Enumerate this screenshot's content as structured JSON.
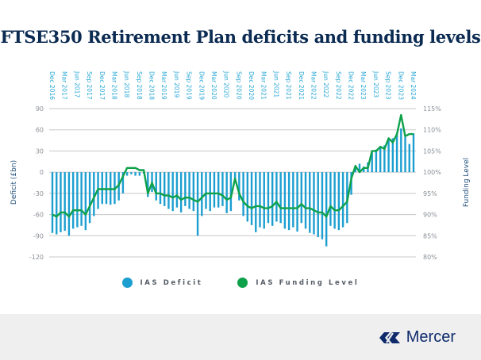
{
  "title": "FTSE350 Retirement Plan deficits and funding levels",
  "legend": [
    {
      "label": "IAS Deficit",
      "color": "#1c9fd0"
    },
    {
      "label": "IAS Funding Level",
      "color": "#0ea14a"
    }
  ],
  "logo": {
    "text": "Mercer",
    "color": "#0e2a6b"
  },
  "chart_data": {
    "type": "bar+line",
    "title": "FTSE350 Retirement Plan deficits and funding levels",
    "x_tick_labels": [
      "Dec 2016",
      "Mar 2017",
      "Jun 2017",
      "Sep 2017",
      "Dec 2017",
      "Mar 2018",
      "Jun 2018",
      "Sep 2018",
      "Dec 2018",
      "Mar 2019",
      "Jun 2019",
      "Sep 2019",
      "Dec 2019",
      "Mar 2020",
      "Jun 2020",
      "Sep 2020",
      "Dec 2020",
      "Mar 2021",
      "Jun 2021",
      "Sep 2021",
      "Dec 2021",
      "Mar 2022",
      "Jun 2022",
      "Sep 2022",
      "Dec 2022",
      "Mar 2023",
      "Jun 2023",
      "Sep 2023",
      "Dec 2023",
      "Mar 2024"
    ],
    "x_period": "monthly, Dec 2016 to Mar 2024",
    "left_axis": {
      "label": "Deficit (£bn)",
      "ticks": [
        90,
        60,
        30,
        0,
        -30,
        -60,
        -90,
        -120
      ],
      "range": [
        -120,
        90
      ]
    },
    "right_axis": {
      "label": "Funding Level",
      "ticks": [
        "115%",
        "110%",
        "105%",
        "100%",
        "95%",
        "90%",
        "85%",
        "80%"
      ],
      "range": [
        80,
        115
      ]
    },
    "grid": true,
    "legend_position": "bottom-center",
    "series": [
      {
        "name": "IAS Deficit",
        "type": "bar",
        "axis": "left",
        "color": "#1c9fd0",
        "values": [
          -86,
          -88,
          -85,
          -83,
          -90,
          -80,
          -78,
          -76,
          -82,
          -72,
          -62,
          -52,
          -45,
          -45,
          -46,
          -45,
          -40,
          -30,
          -5,
          -3,
          -5,
          -5,
          -2,
          -35,
          -28,
          -40,
          -45,
          -48,
          -52,
          -55,
          -50,
          -57,
          -48,
          -52,
          -55,
          -90,
          -62,
          -52,
          -55,
          -50,
          -50,
          -48,
          -58,
          -55,
          -10,
          -40,
          -62,
          -70,
          -75,
          -85,
          -78,
          -80,
          -72,
          -76,
          -70,
          -72,
          -80,
          -82,
          -78,
          -84,
          -72,
          -80,
          -86,
          -88,
          -92,
          -95,
          -105,
          -76,
          -80,
          -82,
          -78,
          -72,
          -32,
          8,
          12,
          8,
          14,
          28,
          32,
          35,
          38,
          45,
          48,
          55,
          62,
          50,
          40,
          55
        ]
      },
      {
        "name": "IAS Funding Level",
        "type": "line",
        "axis": "right",
        "color": "#0ea14a",
        "values": [
          90,
          89.5,
          90.5,
          90.5,
          89.5,
          91,
          91,
          91,
          90,
          92,
          94,
          96,
          96,
          96,
          96,
          96,
          97,
          99,
          101,
          101,
          101,
          100.5,
          100.5,
          95,
          97.5,
          95,
          95,
          94.5,
          94.5,
          94,
          94.5,
          93.5,
          94,
          94,
          93.5,
          93,
          94,
          95,
          95,
          95,
          95,
          94.5,
          93.5,
          94,
          98.5,
          95,
          93,
          92,
          91.5,
          92,
          92,
          91.5,
          91.5,
          92,
          93,
          91.5,
          91.5,
          91.5,
          91.5,
          91.5,
          92.5,
          91.5,
          91.5,
          91,
          90.5,
          90.5,
          89.5,
          92,
          91,
          91,
          92,
          93,
          98.5,
          101.5,
          100,
          101,
          101,
          105,
          105,
          106,
          105.5,
          108,
          107,
          109,
          113.5,
          108.5,
          109,
          109
        ]
      }
    ]
  }
}
